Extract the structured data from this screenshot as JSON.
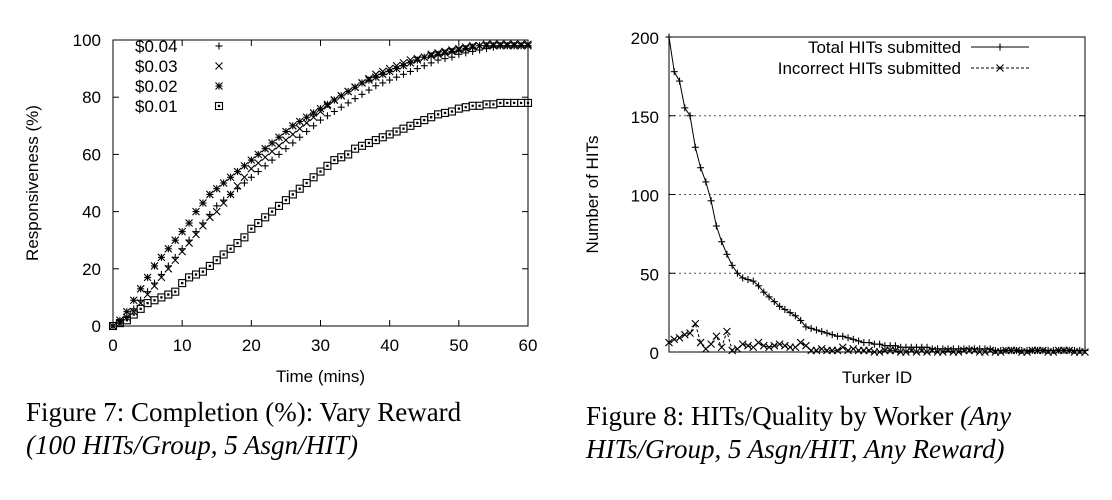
{
  "figures": [
    {
      "caption_head": "Figure 7: Completion (%): Vary Reward",
      "caption_tail": "(100 HITs/Group, 5 Asgn/HIT)"
    },
    {
      "caption_head": "Figure 8: HITs/Quality by Worker",
      "caption_tail": "(Any HITs/Group, 5 Asgn/HIT, Any Reward)"
    }
  ],
  "chart_data": [
    {
      "type": "scatter",
      "title": "",
      "xlabel": "Time (mins)",
      "ylabel": "Responsiveness (%)",
      "xlim": [
        0,
        60
      ],
      "ylim": [
        0,
        100
      ],
      "xticks": [
        0,
        10,
        20,
        30,
        40,
        50,
        60
      ],
      "yticks": [
        0,
        20,
        40,
        60,
        80,
        100
      ],
      "grid": false,
      "legend_position": "top-left",
      "series": [
        {
          "name": "$0.04",
          "marker": "plus",
          "x": [
            0,
            1,
            2,
            3,
            4,
            5,
            6,
            7,
            8,
            9,
            10,
            11,
            12,
            13,
            14,
            15,
            16,
            17,
            18,
            19,
            20,
            21,
            22,
            23,
            24,
            25,
            26,
            27,
            28,
            29,
            30,
            31,
            32,
            33,
            34,
            35,
            36,
            37,
            38,
            39,
            40,
            41,
            42,
            43,
            44,
            45,
            46,
            47,
            48,
            49,
            50,
            51,
            52,
            53,
            54,
            55,
            56,
            57,
            58,
            59,
            60
          ],
          "y": [
            0,
            1,
            3,
            6,
            9,
            12,
            15,
            18,
            21,
            24,
            27,
            30,
            33,
            36,
            39,
            42,
            44,
            46,
            48,
            50,
            52,
            54,
            56,
            58,
            60,
            62,
            64,
            66,
            68,
            70,
            72,
            73.5,
            75,
            76.5,
            78,
            79.5,
            81,
            82.5,
            84,
            85,
            86,
            87,
            88,
            89,
            90,
            91,
            92,
            93,
            93.5,
            94,
            95,
            95.5,
            96,
            96.5,
            97,
            97.5,
            98,
            98,
            98,
            98,
            98
          ]
        },
        {
          "name": "$0.03",
          "marker": "x",
          "x": [
            0,
            1,
            2,
            3,
            4,
            5,
            6,
            7,
            8,
            9,
            10,
            11,
            12,
            13,
            14,
            15,
            16,
            17,
            18,
            19,
            20,
            21,
            22,
            23,
            24,
            25,
            26,
            27,
            28,
            29,
            30,
            31,
            32,
            33,
            34,
            35,
            36,
            37,
            38,
            39,
            40,
            41,
            42,
            43,
            44,
            45,
            46,
            47,
            48,
            49,
            50,
            51,
            52,
            53,
            54,
            55,
            56,
            57,
            58,
            59,
            60
          ],
          "y": [
            0,
            1,
            3,
            5,
            8,
            11,
            14,
            17,
            20,
            23,
            26,
            29,
            32,
            35,
            38,
            40,
            43,
            46,
            49,
            52,
            55,
            57,
            59,
            61,
            63,
            65,
            67,
            69,
            71,
            73,
            75,
            77,
            79,
            80.5,
            82,
            83.5,
            85,
            86.5,
            88,
            89,
            90,
            91,
            92,
            93,
            93.5,
            94,
            95,
            95.5,
            96,
            96.5,
            97,
            97.5,
            98,
            98,
            98.5,
            98.5,
            98.5,
            98.5,
            98.5,
            98.5,
            98.5
          ]
        },
        {
          "name": "$0.02",
          "marker": "star",
          "x": [
            0,
            1,
            2,
            3,
            4,
            5,
            6,
            7,
            8,
            9,
            10,
            11,
            12,
            13,
            14,
            15,
            16,
            17,
            18,
            19,
            20,
            21,
            22,
            23,
            24,
            25,
            26,
            27,
            28,
            29,
            30,
            31,
            32,
            33,
            34,
            35,
            36,
            37,
            38,
            39,
            40,
            41,
            42,
            43,
            44,
            45,
            46,
            47,
            48,
            49,
            50,
            51,
            52,
            53,
            54,
            55,
            56,
            57,
            58,
            59,
            60
          ],
          "y": [
            0,
            2,
            5,
            9,
            13,
            17,
            21,
            24,
            27,
            30,
            33,
            36,
            40,
            43,
            46,
            48,
            50,
            52,
            54,
            56,
            58,
            60,
            62,
            64,
            66,
            68,
            70,
            71.5,
            73,
            74.5,
            76,
            77.5,
            79,
            80.5,
            82,
            83.5,
            85,
            86,
            87,
            88,
            89,
            90,
            91,
            92,
            93,
            94,
            94.5,
            95,
            95.5,
            96,
            96.5,
            97,
            97.5,
            98,
            98,
            98,
            98,
            98,
            98,
            98,
            98
          ]
        },
        {
          "name": "$0.01",
          "marker": "square",
          "x": [
            0,
            1,
            2,
            3,
            4,
            5,
            6,
            7,
            8,
            9,
            10,
            11,
            12,
            13,
            14,
            15,
            16,
            17,
            18,
            19,
            20,
            21,
            22,
            23,
            24,
            25,
            26,
            27,
            28,
            29,
            30,
            31,
            32,
            33,
            34,
            35,
            36,
            37,
            38,
            39,
            40,
            41,
            42,
            43,
            44,
            45,
            46,
            47,
            48,
            49,
            50,
            51,
            52,
            53,
            54,
            55,
            56,
            57,
            58,
            59,
            60
          ],
          "y": [
            0,
            1,
            2,
            4,
            6,
            8,
            9,
            10,
            11,
            12,
            15,
            17,
            18,
            19,
            21,
            23,
            25,
            27,
            29,
            31,
            34,
            36,
            38,
            40,
            42,
            44,
            46,
            48,
            50,
            52,
            54,
            56,
            58,
            59,
            60,
            62,
            63,
            64,
            65,
            66,
            67,
            68,
            69,
            70,
            71,
            72,
            73,
            74,
            74.5,
            75,
            76,
            76.5,
            77,
            77,
            77.5,
            77.5,
            78,
            78,
            78,
            78,
            78
          ]
        }
      ]
    },
    {
      "type": "line",
      "title": "",
      "xlabel": "Turker ID",
      "ylabel": "Number of HITs",
      "xlim": [
        0,
        100
      ],
      "ylim": [
        0,
        200
      ],
      "yticks": [
        0,
        50,
        100,
        150,
        200
      ],
      "grid": "horizontal dotted",
      "legend_position": "top-right",
      "series": [
        {
          "name": "Total HITs submitted",
          "style": "solid",
          "marker": "plus",
          "y": [
            200,
            178,
            172,
            155,
            150,
            130,
            117,
            108,
            96,
            80,
            70,
            62,
            55,
            50,
            47,
            46,
            45,
            42,
            38,
            35,
            32,
            29,
            27,
            25,
            23,
            20,
            16,
            15,
            14,
            13,
            12,
            11,
            10,
            10,
            9,
            8,
            7,
            6,
            6,
            5,
            5,
            4,
            4,
            4,
            3,
            3,
            3,
            3,
            3,
            3,
            2,
            2,
            2,
            2,
            2,
            2,
            2,
            2,
            2,
            2,
            2,
            2,
            1,
            1,
            1,
            1,
            1,
            1,
            1,
            1,
            1,
            1,
            1,
            1,
            1,
            1,
            1,
            1,
            1,
            1
          ]
        },
        {
          "name": "Incorrect HITs submitted",
          "style": "dashed",
          "marker": "x",
          "y": [
            6,
            8,
            9,
            11,
            12,
            18,
            6,
            2,
            5,
            10,
            3,
            13,
            1,
            2,
            5,
            4,
            3,
            6,
            4,
            3,
            4,
            5,
            4,
            3,
            3,
            6,
            4,
            1,
            1,
            2,
            1,
            1,
            1,
            3,
            1,
            2,
            1,
            1,
            1,
            0,
            0,
            1,
            1,
            1,
            0,
            0,
            1,
            0,
            1,
            0,
            1,
            0,
            0,
            1,
            0,
            0,
            1,
            1,
            1,
            0,
            0,
            1,
            0,
            0,
            1,
            1,
            1,
            0,
            0,
            1,
            1,
            1,
            0,
            0,
            1,
            1,
            1,
            0,
            0,
            0
          ]
        }
      ]
    }
  ]
}
